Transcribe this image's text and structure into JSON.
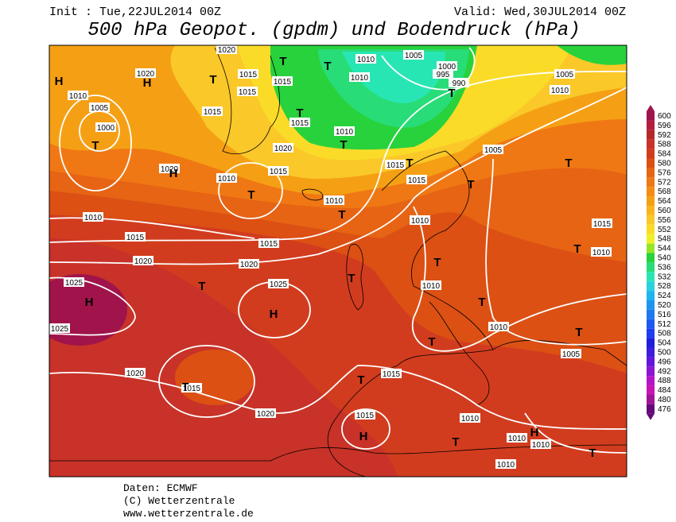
{
  "header": {
    "init": "Init : Tue,22JUL2014 00Z",
    "valid": "Valid: Wed,30JUL2014 00Z",
    "title": "500 hPa Geopot. (gpdm) und Bodendruck (hPa)"
  },
  "legend": {
    "levels": [
      600,
      596,
      592,
      588,
      584,
      580,
      576,
      572,
      568,
      564,
      560,
      556,
      552,
      548,
      544,
      540,
      536,
      532,
      528,
      524,
      520,
      516,
      512,
      508,
      504,
      500,
      496,
      492,
      488,
      484,
      480,
      476
    ],
    "colors": [
      "#a0144b",
      "#b41e3c",
      "#b42828",
      "#c83228",
      "#d23c1e",
      "#dc5014",
      "#e66414",
      "#f07814",
      "#f58c14",
      "#f5a014",
      "#fab41e",
      "#fac828",
      "#fadc28",
      "#f0f028",
      "#96e628",
      "#28d23c",
      "#28dc78",
      "#28e6b4",
      "#28d2dc",
      "#1eb4f0",
      "#1e96f0",
      "#1e78f0",
      "#1e5af0",
      "#1e3cf0",
      "#1e1edc",
      "#3c1edc",
      "#6414dc",
      "#8c14d2",
      "#b414c8",
      "#c814b4",
      "#a01496",
      "#640a78"
    ]
  },
  "isobar_labels": [
    1020,
    1015,
    1015,
    1010,
    1005,
    1010,
    1000,
    995,
    990,
    1010,
    1005,
    1000,
    1020,
    1015,
    1015,
    1015,
    1010,
    1020,
    1015,
    1010,
    1020,
    1015,
    1015,
    1005,
    1005,
    1010,
    1010,
    1010,
    1015,
    1020,
    1015,
    1020,
    1025,
    1010,
    1015,
    1010,
    1010,
    1025,
    1025,
    1010,
    1005,
    1020,
    1015,
    1020,
    1015,
    1015,
    1010,
    1010,
    1010,
    1010
  ],
  "pressure_centers": [
    "H",
    "H",
    "H",
    "H",
    "H",
    "H",
    "H",
    "T",
    "T",
    "T",
    "T",
    "T",
    "T",
    "T",
    "T",
    "T",
    "T",
    "T",
    "T",
    "T",
    "T",
    "T",
    "T",
    "T",
    "T",
    "T",
    "T",
    "T",
    "T",
    "T"
  ],
  "footer": {
    "source": "Daten: ECMWF",
    "copyright": "(C) Wetterzentrale",
    "url": "www.wetterzentrale.de"
  }
}
